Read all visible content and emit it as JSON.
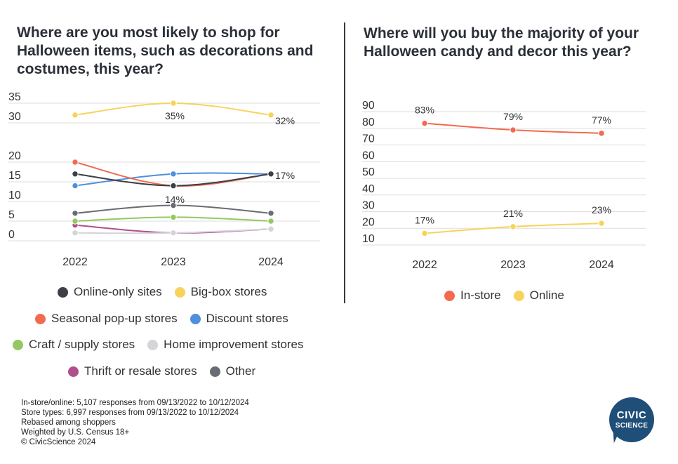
{
  "left_chart": {
    "title": "Where are you most likely to shop for Halloween items, such as decorations and costumes, this year?"
  },
  "right_chart": {
    "title": "Where will you buy the majority of your Halloween candy and decor this year?"
  },
  "notes": [
    "In-store/online: 5,107 responses from 09/13/2022 to 10/12/2024",
    "Store types: 6,997 responses from 09/13/2022 to 10/12/2024",
    "Rebased among shoppers",
    "Weighted by U.S. Census 18+",
    "© CivicScience 2024"
  ],
  "logo": {
    "line1": "CIVIC",
    "line2": "SCIENCE",
    "color": "#1f4e78"
  },
  "chart_data": [
    {
      "type": "line",
      "title": "Where are you most likely to shop for Halloween items, such as decorations and costumes, this year?",
      "x": [
        "2022",
        "2023",
        "2024"
      ],
      "ylim": [
        0,
        35
      ],
      "yticks": [
        0,
        5,
        10,
        15,
        20,
        30,
        35
      ],
      "grid": true,
      "legend_position": "bottom",
      "series": [
        {
          "name": "Online-only sites",
          "color": "#3d3f46",
          "values": [
            17,
            14,
            17
          ]
        },
        {
          "name": "Big-box stores",
          "color": "#f7d35b",
          "values": [
            32,
            35,
            32
          ]
        },
        {
          "name": "Seasonal pop-up stores",
          "color": "#f26b4f",
          "values": [
            20,
            14,
            17
          ]
        },
        {
          "name": "Discount stores",
          "color": "#4f8fdc",
          "values": [
            14,
            17,
            17
          ]
        },
        {
          "name": "Craft / supply stores",
          "color": "#93c862",
          "values": [
            5,
            6,
            5
          ]
        },
        {
          "name": "Home improvement stores",
          "color": "#d4d4d9",
          "values": [
            2,
            2,
            3
          ]
        },
        {
          "name": "Thrift or resale stores",
          "color": "#b04f8c",
          "values": [
            4,
            2,
            3
          ]
        },
        {
          "name": "Other",
          "color": "#6a6c74",
          "values": [
            7,
            9,
            7
          ]
        }
      ],
      "annotations": [
        {
          "text": "35%"
        },
        {
          "text": "32%"
        },
        {
          "text": "17%"
        },
        {
          "text": "14%"
        }
      ]
    },
    {
      "type": "line",
      "title": "Where will you buy the majority of your Halloween candy and decor this year?",
      "x": [
        "2022",
        "2023",
        "2024"
      ],
      "ylim": [
        10,
        90
      ],
      "yticks": [
        10,
        20,
        30,
        40,
        50,
        60,
        70,
        80,
        90
      ],
      "grid": true,
      "legend_position": "bottom",
      "series": [
        {
          "name": "In-store",
          "color": "#f26b4f",
          "values": [
            83,
            79,
            77
          ],
          "labels": [
            "83%",
            "79%",
            "77%"
          ]
        },
        {
          "name": "Online",
          "color": "#f7d35b",
          "values": [
            17,
            21,
            23
          ],
          "labels": [
            "17%",
            "21%",
            "23%"
          ]
        }
      ]
    }
  ]
}
